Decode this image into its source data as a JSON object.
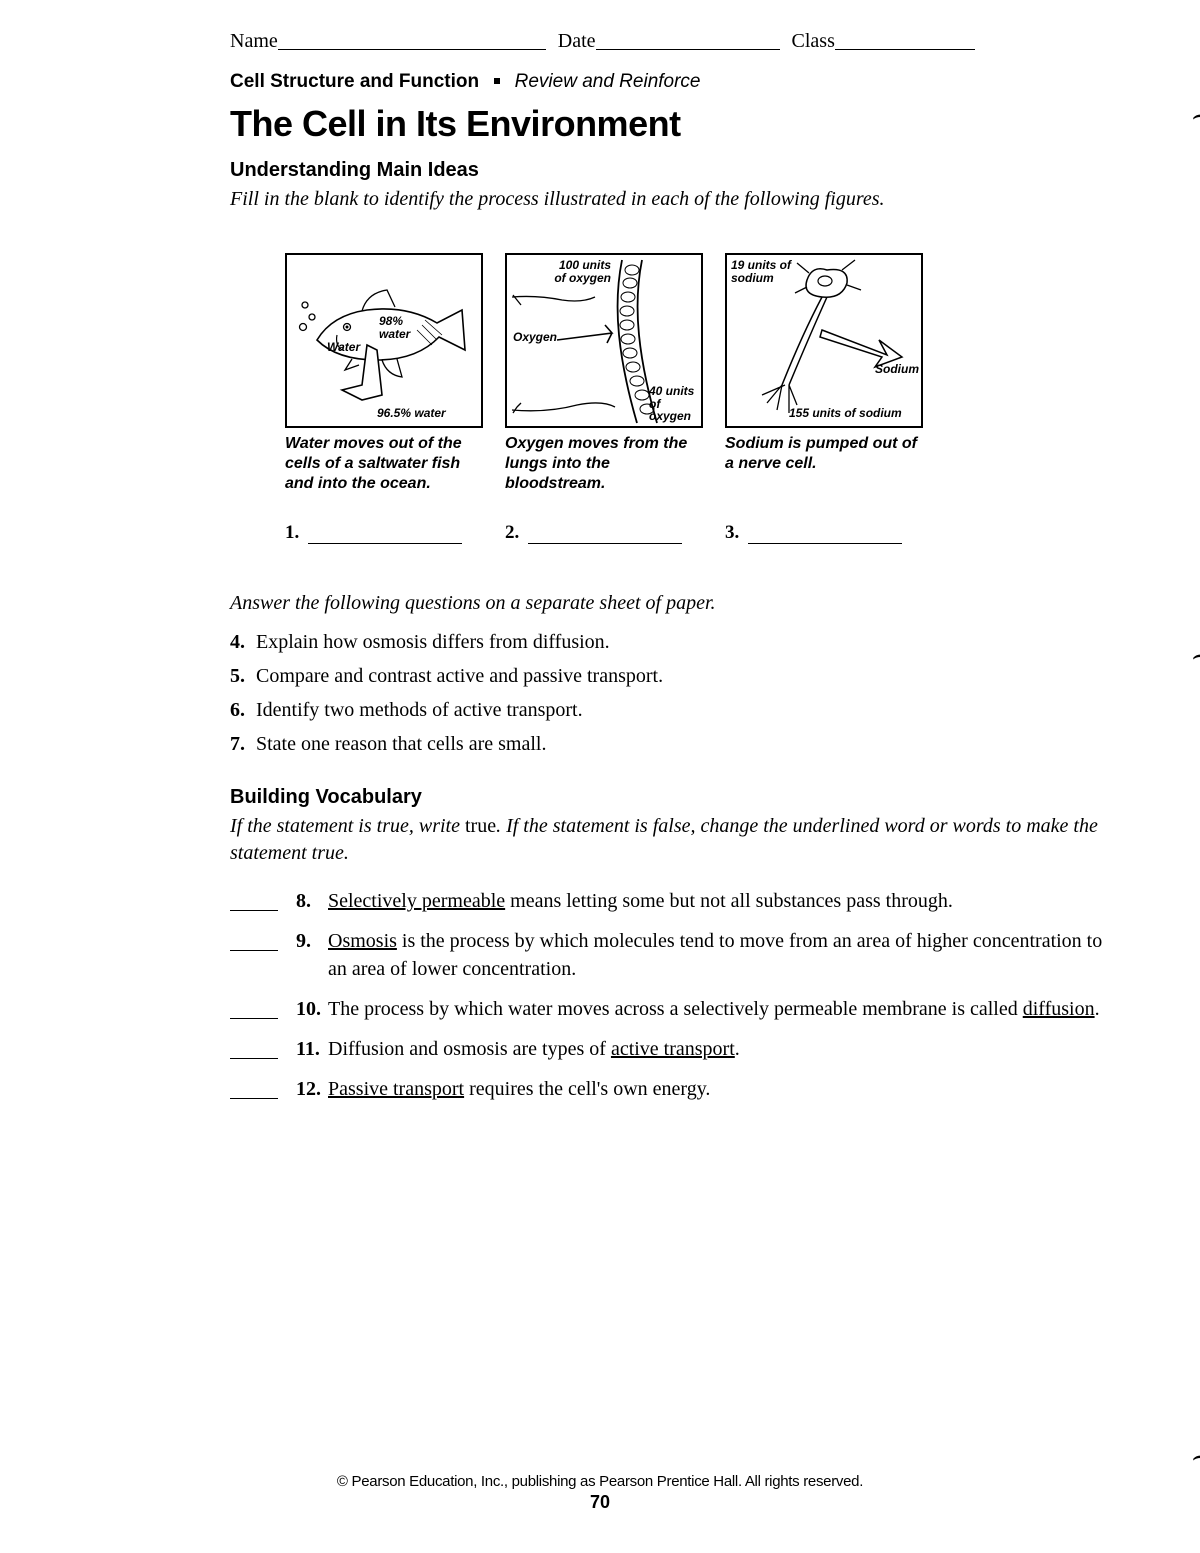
{
  "header": {
    "name_label": "Name",
    "date_label": "Date",
    "class_label": "Class",
    "name_line_width": 268,
    "date_line_width": 184,
    "class_line_width": 140
  },
  "chapter": {
    "bold": "Cell Structure and Function",
    "italic": "Review and Reinforce"
  },
  "title": "The Cell in Its Environment",
  "section1": {
    "heading": "Understanding Main Ideas",
    "instruction": "Fill in the blank to identify the process illustrated in each of the following figures."
  },
  "figures": [
    {
      "labels": {
        "inside": "98% water",
        "outside": "96.5% water",
        "water": "Water"
      },
      "caption": "Water moves out of the cells of a saltwater fish and into the ocean.",
      "number": "1."
    },
    {
      "labels": {
        "top": "100 units of oxygen",
        "mid": "Oxygen",
        "bottom": "40 units of oxygen"
      },
      "caption": "Oxygen moves from the lungs into the bloodstream.",
      "number": "2."
    },
    {
      "labels": {
        "top": "19 units of sodium",
        "right": "Sodium",
        "bottom": "155 units of sodium"
      },
      "caption": "Sodium is pumped out of a nerve cell.",
      "number": "3."
    }
  ],
  "questions_instruction": "Answer the following questions on a separate sheet of paper.",
  "questions": [
    {
      "num": "4.",
      "text": "Explain how osmosis differs from diffusion."
    },
    {
      "num": "5.",
      "text": "Compare and contrast active and passive transport."
    },
    {
      "num": "6.",
      "text": "Identify two methods of active transport."
    },
    {
      "num": "7.",
      "text": "State one reason that cells are small."
    }
  ],
  "section2": {
    "heading": "Building Vocabulary",
    "instruction_html": "If the statement is true, write <span style='font-style:normal'>true</span>. If the statement is false, change the underlined word or words to make the statement true."
  },
  "vocab": [
    {
      "num": "8.",
      "html": "<span class='underlined'>Selectively permeable</span> means letting some but not all substances pass through."
    },
    {
      "num": "9.",
      "html": "<span class='underlined'>Osmosis</span> is the process by which molecules tend to move from an area of higher concentration to an area of lower concentration."
    },
    {
      "num": "10.",
      "html": "The process by which water moves across a selectively permeable membrane is called <span class='underlined'>diffusion</span>."
    },
    {
      "num": "11.",
      "html": "Diffusion and osmosis are types of <span class='underlined'>active transport</span>."
    },
    {
      "num": "12.",
      "html": "<span class='underlined'>Passive transport</span> requires the cell's own energy."
    }
  ],
  "footer": {
    "copyright": "© Pearson Education, Inc., publishing as Pearson Prentice Hall. All rights reserved.",
    "page": "70"
  }
}
